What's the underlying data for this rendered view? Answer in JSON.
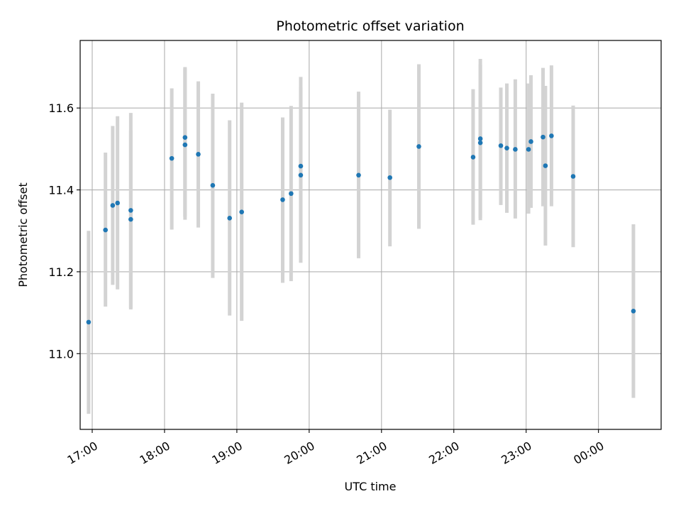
{
  "chart_data": {
    "type": "scatter",
    "title": "Photometric offset variation",
    "xlabel": "UTC time",
    "ylabel": "Photometric offset",
    "x_ticks": [
      "17:00",
      "18:00",
      "19:00",
      "20:00",
      "21:00",
      "22:00",
      "23:00",
      "00:00"
    ],
    "x_tick_values": [
      "17:00",
      "18:00",
      "19:00",
      "20:00",
      "21:00",
      "22:00",
      "23:00",
      "24:00"
    ],
    "y_ticks": [
      "11.0",
      "11.2",
      "11.4",
      "11.6"
    ],
    "y_tick_values": [
      11.0,
      11.2,
      11.4,
      11.6
    ],
    "xlim": [
      "16:50",
      "00:52"
    ],
    "ylim": [
      10.815,
      11.765
    ],
    "grid": true,
    "marker_color": "#1f77b4",
    "errorbar_color": "#d3d3d3",
    "points": [
      {
        "x": "16:57",
        "y": 11.077,
        "yerr_low": 10.853,
        "yerr_high": 11.3
      },
      {
        "x": "17:11",
        "y": 11.302,
        "yerr_low": 11.115,
        "yerr_high": 11.491
      },
      {
        "x": "17:17",
        "y": 11.362,
        "yerr_low": 11.168,
        "yerr_high": 11.556
      },
      {
        "x": "17:21",
        "y": 11.368,
        "yerr_low": 11.157,
        "yerr_high": 11.58
      },
      {
        "x": "17:32",
        "y": 11.328,
        "yerr_low": 11.108,
        "yerr_high": 11.545
      },
      {
        "x": "17:32",
        "y": 11.35,
        "yerr_low": 11.112,
        "yerr_high": 11.588
      },
      {
        "x": "18:06",
        "y": 11.477,
        "yerr_low": 11.303,
        "yerr_high": 11.648
      },
      {
        "x": "18:17",
        "y": 11.51,
        "yerr_low": 11.327,
        "yerr_high": 11.697
      },
      {
        "x": "18:17",
        "y": 11.528,
        "yerr_low": 11.335,
        "yerr_high": 11.7
      },
      {
        "x": "18:28",
        "y": 11.487,
        "yerr_low": 11.308,
        "yerr_high": 11.665
      },
      {
        "x": "18:40",
        "y": 11.411,
        "yerr_low": 11.185,
        "yerr_high": 11.635
      },
      {
        "x": "18:54",
        "y": 11.331,
        "yerr_low": 11.093,
        "yerr_high": 11.57
      },
      {
        "x": "19:04",
        "y": 11.346,
        "yerr_low": 11.08,
        "yerr_high": 11.613
      },
      {
        "x": "19:38",
        "y": 11.376,
        "yerr_low": 11.173,
        "yerr_high": 11.577
      },
      {
        "x": "19:45",
        "y": 11.391,
        "yerr_low": 11.177,
        "yerr_high": 11.605
      },
      {
        "x": "19:53",
        "y": 11.436,
        "yerr_low": 11.222,
        "yerr_high": 11.65
      },
      {
        "x": "19:53",
        "y": 11.458,
        "yerr_low": 11.242,
        "yerr_high": 11.676
      },
      {
        "x": "20:41",
        "y": 11.436,
        "yerr_low": 11.233,
        "yerr_high": 11.64
      },
      {
        "x": "21:07",
        "y": 11.43,
        "yerr_low": 11.262,
        "yerr_high": 11.596
      },
      {
        "x": "21:31",
        "y": 11.506,
        "yerr_low": 11.305,
        "yerr_high": 11.707
      },
      {
        "x": "22:16",
        "y": 11.48,
        "yerr_low": 11.315,
        "yerr_high": 11.646
      },
      {
        "x": "22:22",
        "y": 11.515,
        "yerr_low": 11.326,
        "yerr_high": 11.706
      },
      {
        "x": "22:22",
        "y": 11.525,
        "yerr_low": 11.332,
        "yerr_high": 11.72
      },
      {
        "x": "22:39",
        "y": 11.508,
        "yerr_low": 11.363,
        "yerr_high": 11.65
      },
      {
        "x": "22:44",
        "y": 11.502,
        "yerr_low": 11.344,
        "yerr_high": 11.66
      },
      {
        "x": "22:51",
        "y": 11.499,
        "yerr_low": 11.33,
        "yerr_high": 11.67
      },
      {
        "x": "23:02",
        "y": 11.499,
        "yerr_low": 11.342,
        "yerr_high": 11.66
      },
      {
        "x": "23:04",
        "y": 11.518,
        "yerr_low": 11.356,
        "yerr_high": 11.68
      },
      {
        "x": "23:14",
        "y": 11.529,
        "yerr_low": 11.36,
        "yerr_high": 11.698
      },
      {
        "x": "23:16",
        "y": 11.459,
        "yerr_low": 11.264,
        "yerr_high": 11.654
      },
      {
        "x": "23:21",
        "y": 11.532,
        "yerr_low": 11.36,
        "yerr_high": 11.704
      },
      {
        "x": "23:39",
        "y": 11.433,
        "yerr_low": 11.26,
        "yerr_high": 11.606
      },
      {
        "x": "00:29",
        "y": 11.104,
        "yerr_low": 10.892,
        "yerr_high": 11.316
      }
    ]
  }
}
